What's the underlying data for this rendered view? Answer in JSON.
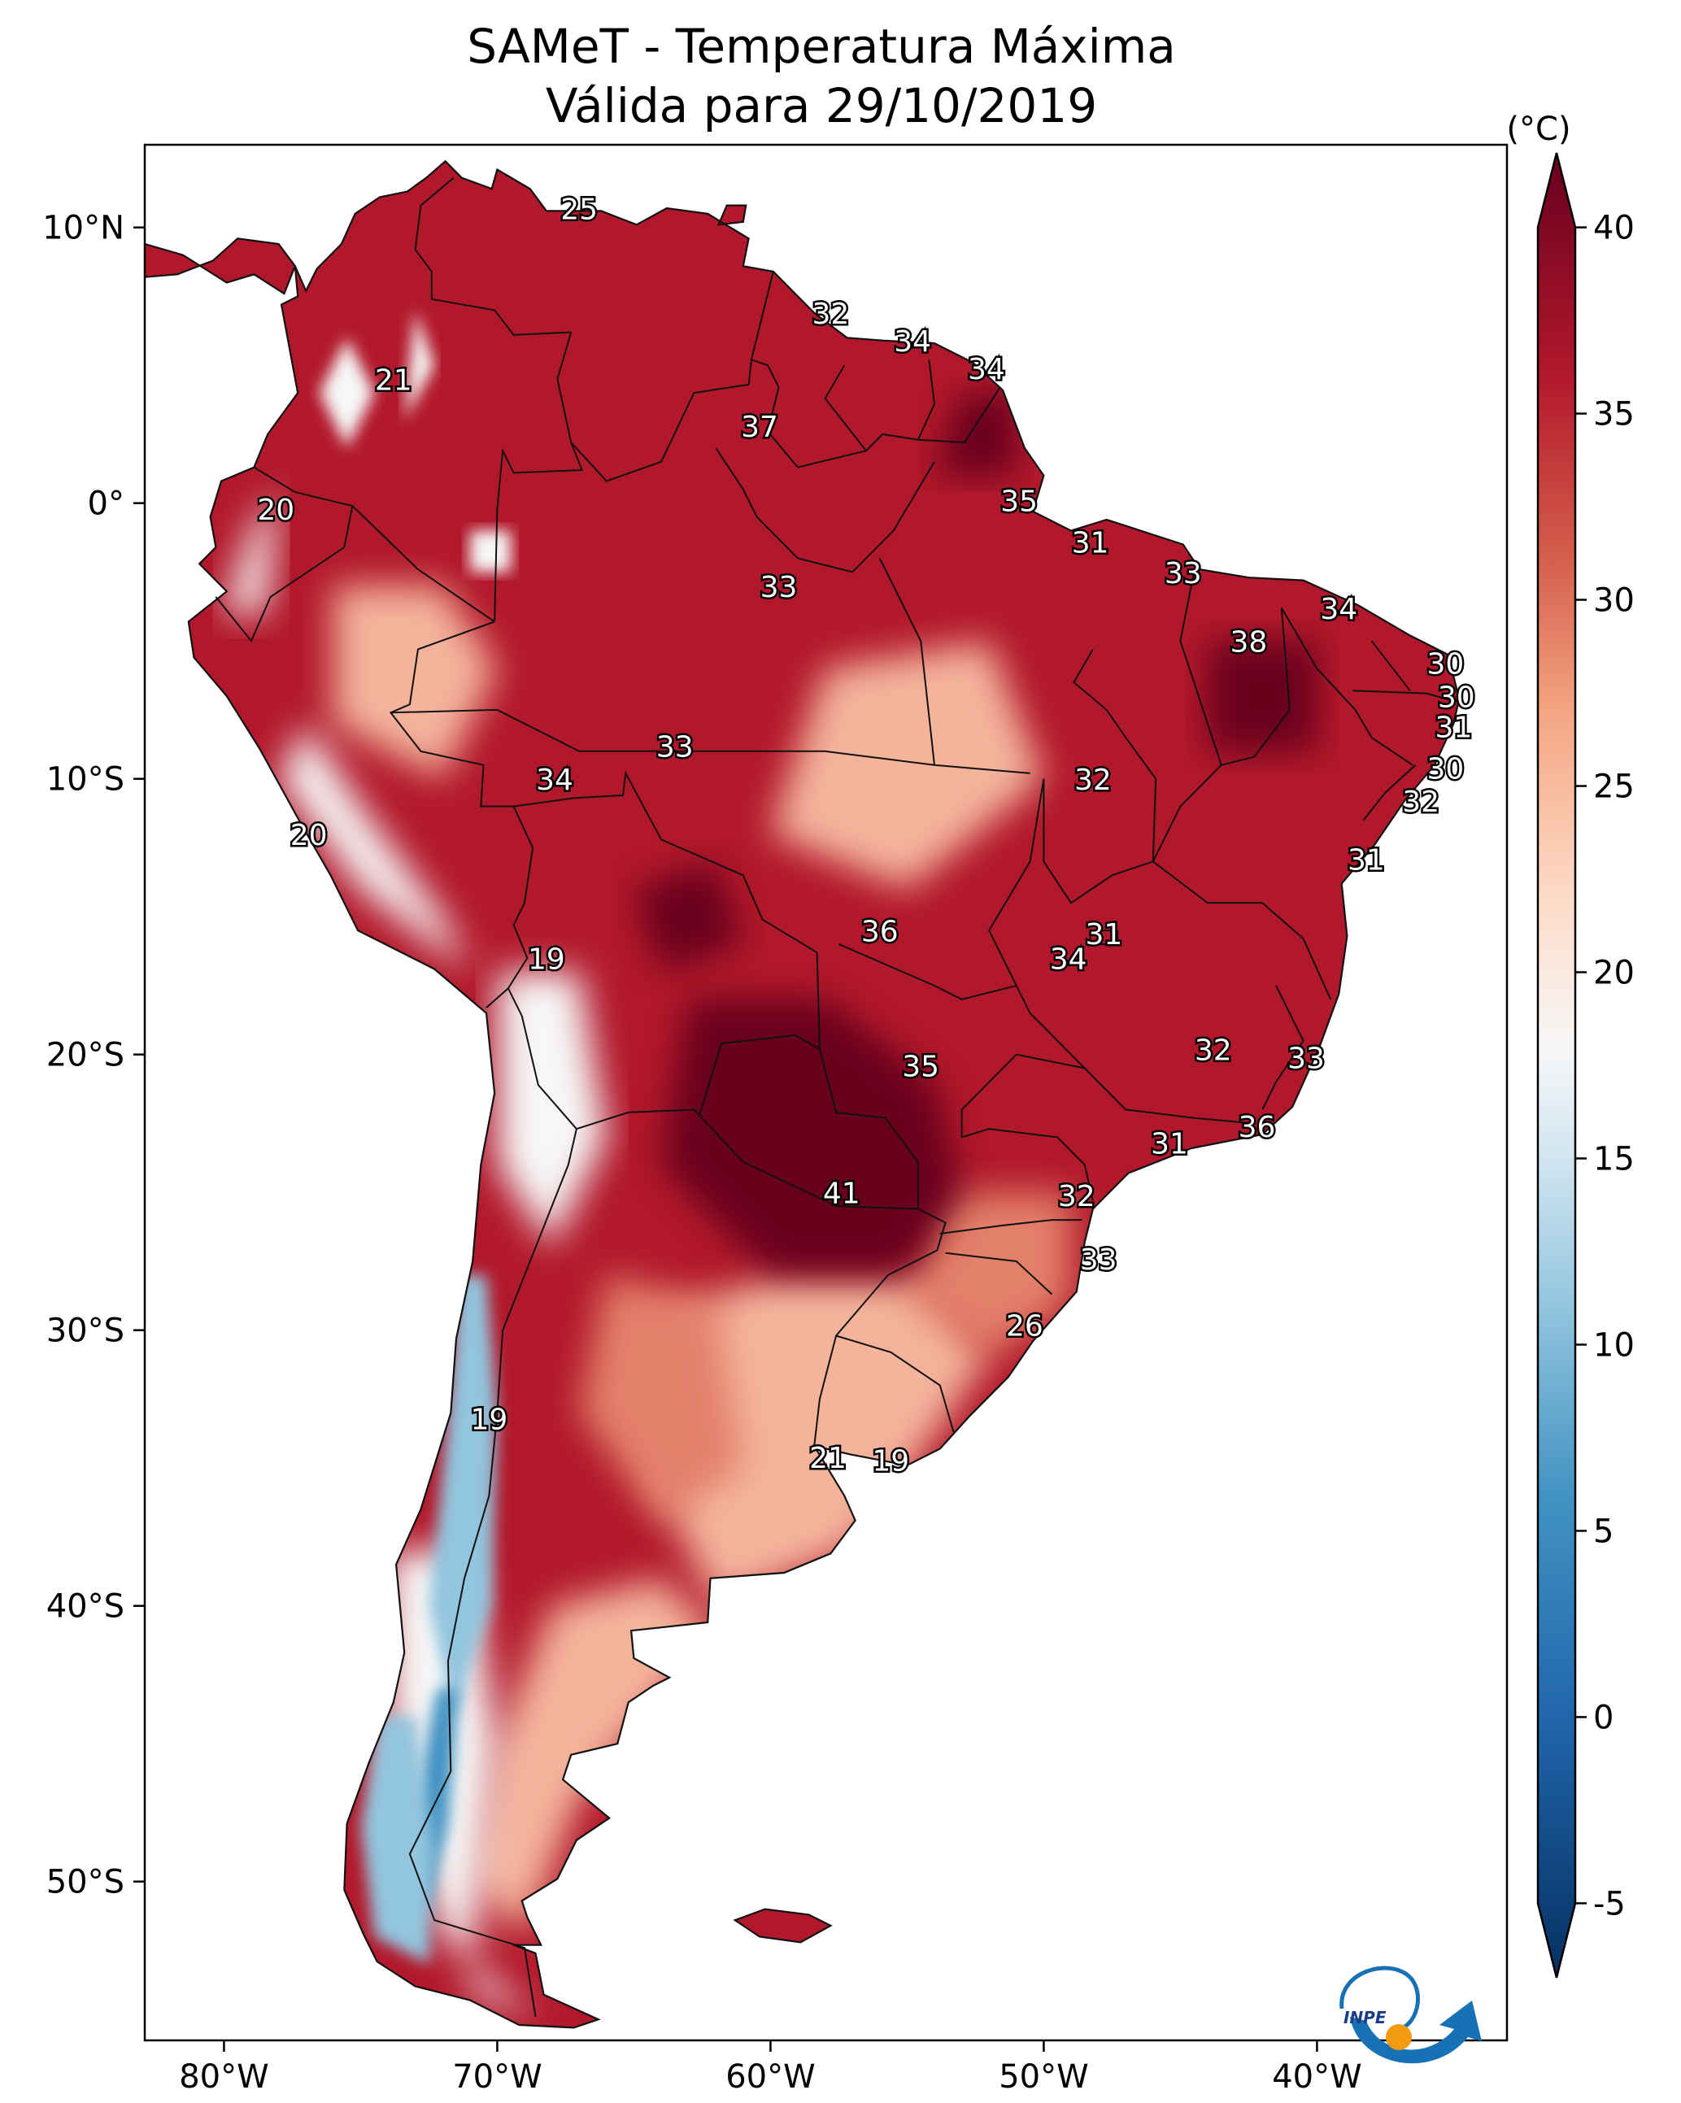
{
  "title_line1": "SAMeT - Temperatura Máxima",
  "title_line2": "Válida para 29/10/2019",
  "colorbar": {
    "unit_label": "(°C)",
    "min": -7,
    "max": 42,
    "ticks": [
      -5,
      0,
      5,
      10,
      15,
      20,
      25,
      30,
      35,
      40
    ],
    "tick_labels": [
      "-5",
      "0",
      "5",
      "10",
      "15",
      "20",
      "25",
      "30",
      "35",
      "40"
    ],
    "stops": [
      {
        "value": -7,
        "color": "#053061"
      },
      {
        "value": 0,
        "color": "#2166ac"
      },
      {
        "value": 6,
        "color": "#4393c3"
      },
      {
        "value": 11,
        "color": "#92c5de"
      },
      {
        "value": 15,
        "color": "#d1e5f0"
      },
      {
        "value": 18,
        "color": "#f7f7f7"
      },
      {
        "value": 22,
        "color": "#fddbc7"
      },
      {
        "value": 27,
        "color": "#f4a582"
      },
      {
        "value": 31,
        "color": "#d6604d"
      },
      {
        "value": 36,
        "color": "#b2182b"
      },
      {
        "value": 42,
        "color": "#67001f"
      }
    ]
  },
  "axes": {
    "lon_labels": [
      "80°W",
      "70°W",
      "60°W",
      "50°W",
      "40°W"
    ],
    "lat_labels": [
      "10°N",
      "0°",
      "10°S",
      "20°S",
      "30°S",
      "40°S",
      "50°S"
    ]
  },
  "map": {
    "land_colors": {
      "hot": "#b2182b",
      "very_hot": "#67001f",
      "warm": "#e3806a",
      "mild": "#f4b49c",
      "cool": "#f7f7f7",
      "cold": "#92c5de",
      "andes": "#4393c3"
    },
    "labels": [
      {
        "text": "25",
        "lon": -67,
        "lat": 10.6
      },
      {
        "text": "32",
        "lon": -57.8,
        "lat": 6.8
      },
      {
        "text": "34",
        "lon": -54.8,
        "lat": 5.8
      },
      {
        "text": "34",
        "lon": -52.1,
        "lat": 4.8
      },
      {
        "text": "21",
        "lon": -73.8,
        "lat": 4.4
      },
      {
        "text": "37",
        "lon": -60.4,
        "lat": 2.7
      },
      {
        "text": "35",
        "lon": -50.9,
        "lat": 0
      },
      {
        "text": "20",
        "lon": -78.1,
        "lat": -0.3
      },
      {
        "text": "31",
        "lon": -48.3,
        "lat": -1.5
      },
      {
        "text": "33",
        "lon": -44.9,
        "lat": -2.6
      },
      {
        "text": "33",
        "lon": -59.7,
        "lat": -3.1
      },
      {
        "text": "34",
        "lon": -39.2,
        "lat": -3.9
      },
      {
        "text": "38",
        "lon": -42.5,
        "lat": -5.1
      },
      {
        "text": "30",
        "lon": -35.3,
        "lat": -5.9
      },
      {
        "text": "30",
        "lon": -34.9,
        "lat": -7.1
      },
      {
        "text": "31",
        "lon": -35,
        "lat": -8.2
      },
      {
        "text": "33",
        "lon": -63.5,
        "lat": -8.9
      },
      {
        "text": "30",
        "lon": -35.3,
        "lat": -9.7
      },
      {
        "text": "34",
        "lon": -67.9,
        "lat": -10.1
      },
      {
        "text": "32",
        "lon": -48.2,
        "lat": -10.1
      },
      {
        "text": "32",
        "lon": -36.2,
        "lat": -10.9
      },
      {
        "text": "20",
        "lon": -76.9,
        "lat": -12.1
      },
      {
        "text": "31",
        "lon": -38.2,
        "lat": -13
      },
      {
        "text": "36",
        "lon": -56,
        "lat": -15.6
      },
      {
        "text": "31",
        "lon": -47.8,
        "lat": -15.7
      },
      {
        "text": "34",
        "lon": -49.1,
        "lat": -16.6
      },
      {
        "text": "19",
        "lon": -68.2,
        "lat": -16.6
      },
      {
        "text": "32",
        "lon": -43.8,
        "lat": -19.9
      },
      {
        "text": "33",
        "lon": -40.4,
        "lat": -20.2
      },
      {
        "text": "35",
        "lon": -54.5,
        "lat": -20.5
      },
      {
        "text": "36",
        "lon": -42.2,
        "lat": -22.7
      },
      {
        "text": "31",
        "lon": -45.4,
        "lat": -23.3
      },
      {
        "text": "41",
        "lon": -57.4,
        "lat": -25.1
      },
      {
        "text": "32",
        "lon": -48.8,
        "lat": -25.2
      },
      {
        "text": "33",
        "lon": -48,
        "lat": -27.5
      },
      {
        "text": "26",
        "lon": -50.7,
        "lat": -29.9
      },
      {
        "text": "19",
        "lon": -70.3,
        "lat": -33.3
      },
      {
        "text": "21",
        "lon": -57.9,
        "lat": -34.7
      },
      {
        "text": "19",
        "lon": -55.6,
        "lat": -34.8
      }
    ]
  },
  "logo": {
    "text": "INPE"
  }
}
